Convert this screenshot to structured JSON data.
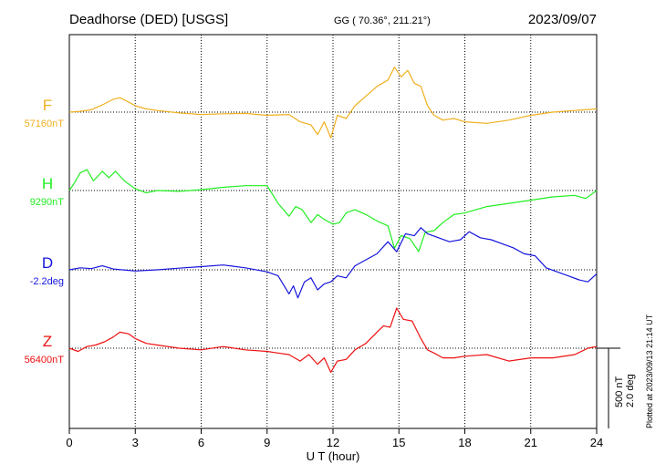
{
  "chart_data": {
    "type": "line",
    "station_title": "Deadhorse (DED)  [USGS]",
    "coords": "GG ( 70.36°, 211.21°)",
    "date": "2023/09/07",
    "xlabel": "U T (hour)",
    "xlim": [
      0,
      24
    ],
    "xticks": [
      "0",
      "3",
      "6",
      "9",
      "12",
      "15",
      "18",
      "21",
      "24"
    ],
    "grid": true,
    "scale_bar": {
      "label1": "500 nT",
      "label2": "2.0 deg"
    },
    "plotted_note": "Plotted at 2023/09/13 21:14 UT",
    "series": [
      {
        "name": "F",
        "baseline_label": "57160nT",
        "color": "#f0b020",
        "unit": "nT",
        "x": [
          0,
          0.5,
          1,
          1.5,
          2,
          2.3,
          2.6,
          3,
          3.5,
          4,
          5,
          6,
          7,
          8,
          9,
          10,
          10.5,
          11,
          11.3,
          11.6,
          11.9,
          12.2,
          12.6,
          13,
          13.5,
          14,
          14.5,
          14.8,
          15.1,
          15.4,
          15.7,
          16,
          16.3,
          16.6,
          17,
          17.5,
          18,
          19,
          20,
          21,
          22,
          23,
          24
        ],
        "values": [
          0,
          5,
          15,
          45,
          80,
          90,
          70,
          40,
          20,
          10,
          -5,
          -15,
          -10,
          -8,
          -20,
          -15,
          -60,
          -80,
          -140,
          -60,
          -160,
          -20,
          -40,
          40,
          100,
          160,
          200,
          280,
          220,
          260,
          180,
          160,
          40,
          -20,
          -50,
          -40,
          -60,
          -70,
          -50,
          -20,
          0,
          10,
          20
        ]
      },
      {
        "name": "H",
        "baseline_label": "9290nT",
        "color": "#22ee22",
        "unit": "nT",
        "x": [
          0,
          0.2,
          0.5,
          0.8,
          1.1,
          1.5,
          1.8,
          2.1,
          2.5,
          3,
          3.5,
          4,
          5,
          6,
          7,
          8,
          9,
          9.5,
          10,
          10.3,
          10.6,
          11,
          11.3,
          11.6,
          12,
          12.3,
          12.6,
          13,
          13.5,
          14,
          14.5,
          14.8,
          15.1,
          15.5,
          15.9,
          16.2,
          16.6,
          17,
          17.5,
          18,
          19,
          20,
          21,
          22,
          23,
          23.5,
          24
        ],
        "values": [
          0,
          40,
          110,
          130,
          60,
          120,
          80,
          120,
          60,
          10,
          -15,
          0,
          -5,
          5,
          20,
          30,
          30,
          -80,
          -160,
          -100,
          -120,
          -200,
          -150,
          -180,
          -210,
          -200,
          -140,
          -120,
          -150,
          -190,
          -220,
          -360,
          -280,
          -300,
          -380,
          -260,
          -250,
          -200,
          -150,
          -140,
          -100,
          -80,
          -60,
          -40,
          -30,
          -50,
          0
        ]
      },
      {
        "name": "D",
        "baseline_label": "-2.2deg",
        "color": "#1515dd",
        "unit": "deg",
        "x": [
          0,
          0.5,
          1,
          1.5,
          2,
          3,
          4,
          5,
          6,
          7,
          8,
          9,
          9.5,
          10,
          10.2,
          10.4,
          10.7,
          11,
          11.3,
          11.6,
          11.9,
          12.2,
          12.6,
          13,
          13.5,
          14,
          14.5,
          14.9,
          15.3,
          15.7,
          16,
          16.3,
          16.8,
          17.3,
          17.8,
          18.2,
          18.7,
          19.2,
          19.7,
          20.2,
          20.7,
          21.2,
          21.7,
          22.2,
          22.7,
          23.2,
          23.6,
          24
        ],
        "values": [
          0,
          0.05,
          0.03,
          0.1,
          0.02,
          -0.03,
          0,
          0.04,
          0.08,
          0.12,
          0.05,
          -0.05,
          -0.15,
          -0.6,
          -0.4,
          -0.7,
          -0.3,
          -0.2,
          -0.5,
          -0.35,
          -0.3,
          -0.15,
          -0.2,
          0.1,
          0.25,
          0.4,
          0.7,
          0.45,
          0.9,
          0.85,
          1.05,
          0.9,
          0.8,
          0.7,
          0.75,
          0.95,
          0.8,
          0.75,
          0.65,
          0.55,
          0.4,
          0.35,
          0.05,
          -0.05,
          -0.15,
          -0.25,
          -0.3,
          -0.1
        ]
      },
      {
        "name": "Z",
        "baseline_label": "56400nT",
        "color": "#ee1111",
        "unit": "nT",
        "x": [
          0,
          0.4,
          0.8,
          1.2,
          1.6,
          2,
          2.3,
          2.7,
          3,
          3.5,
          4,
          5,
          6,
          7,
          8,
          9,
          9.5,
          10,
          10.5,
          10.9,
          11.3,
          11.6,
          11.9,
          12.2,
          12.6,
          13,
          13.5,
          14,
          14.3,
          14.6,
          14.9,
          15.2,
          15.6,
          16,
          16.3,
          16.6,
          17,
          17.5,
          18,
          19,
          20,
          21,
          22,
          23,
          23.6,
          24
        ],
        "values": [
          0,
          -20,
          10,
          20,
          40,
          70,
          100,
          90,
          60,
          30,
          20,
          0,
          -10,
          10,
          -10,
          -20,
          -30,
          -40,
          -80,
          -40,
          -100,
          -60,
          -150,
          -80,
          -70,
          -10,
          30,
          100,
          140,
          130,
          250,
          180,
          170,
          60,
          -10,
          -30,
          -60,
          -60,
          -50,
          -40,
          -80,
          -60,
          -60,
          -40,
          0,
          10
        ]
      }
    ]
  }
}
